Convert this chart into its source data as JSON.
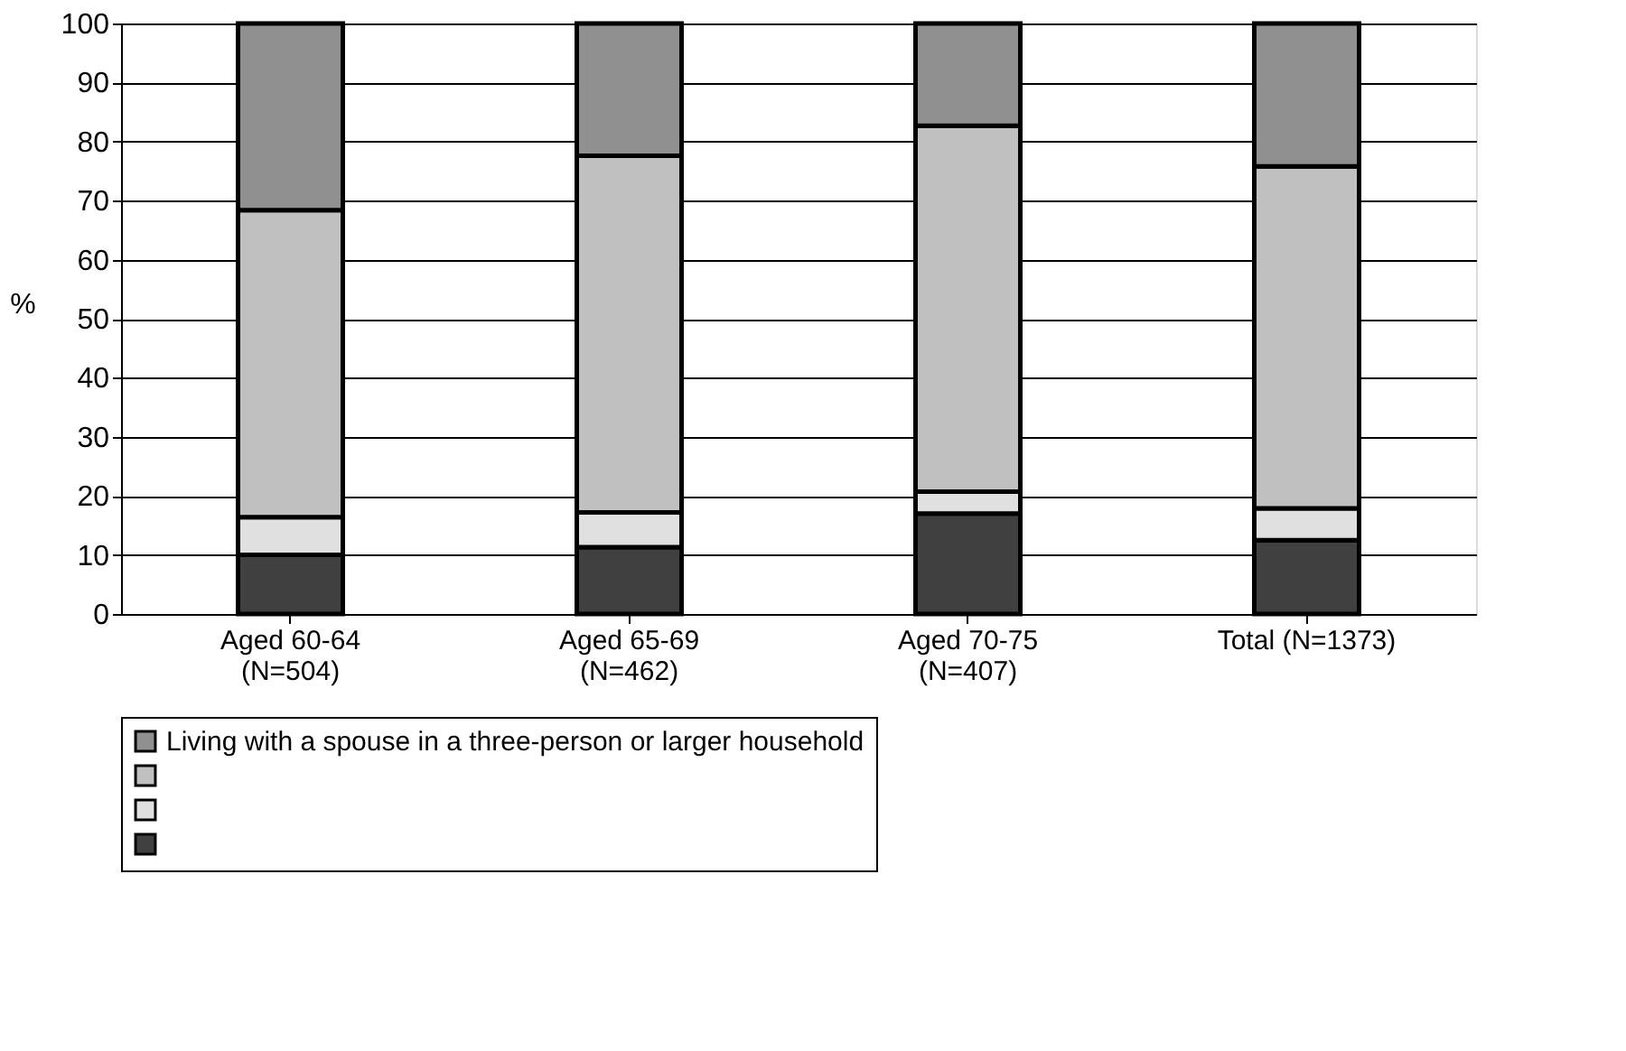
{
  "chart_data": {
    "type": "bar",
    "stacked": true,
    "ylabel": "%",
    "categories": [
      "Aged 60-64\n(N=504)",
      "Aged 65-69\n(N=462)",
      "Aged 70-75\n(N=407)",
      "Total (N=1373)"
    ],
    "series": [
      {
        "name": null,
        "color": "#404040",
        "values": [
          10,
          11.3,
          17,
          12.5
        ]
      },
      {
        "name": null,
        "color": "#e0e0e0",
        "values": [
          6.4,
          5.9,
          3.7,
          5.4
        ]
      },
      {
        "name": null,
        "color": "#c0c0c0",
        "values": [
          52,
          60.4,
          62,
          57.9
        ]
      },
      {
        "name": "Living with a spouse in a three-person or larger household",
        "color": "#909090",
        "values": [
          31.6,
          22.4,
          17.3,
          24.2
        ]
      }
    ],
    "ylim": [
      0,
      100
    ],
    "yticks": [
      0,
      10,
      20,
      30,
      40,
      50,
      60,
      70,
      80,
      90,
      100
    ],
    "grid": "y",
    "legend": "bottom"
  }
}
